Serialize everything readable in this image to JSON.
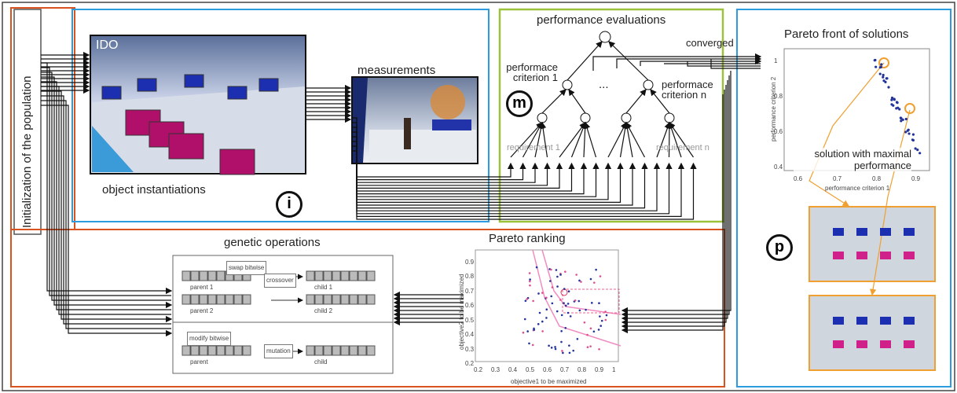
{
  "left_label": "Initialization of the population",
  "ido": {
    "label": "IDO",
    "caption": "object instantiations",
    "badge": "i"
  },
  "measurements": {
    "title": "measurements"
  },
  "evaluation": {
    "title": "performance evaluations",
    "criterion_1": "performace criterion 1",
    "criterion_n": "performace criterion n",
    "ellipsis": "...",
    "requirement_1": "requirement 1",
    "requirement_n": "requirement n",
    "badge": "m",
    "converged": "converged"
  },
  "pareto_front": {
    "title": "Pareto front of solutions",
    "annotation": "solution with maximal performance",
    "badge": "p",
    "x_label": "performance criterion 1",
    "y_label": "performance criterion 2",
    "xticks": [
      "0.6",
      "0.7",
      "0.8",
      "0.9"
    ],
    "yticks": [
      "0.4",
      "0.6",
      "0.8",
      "1"
    ]
  },
  "genetic": {
    "title": "genetic operations",
    "swap": "swap bitwise",
    "crossover": "crossover",
    "parent_1": "parent 1",
    "parent_2": "parent 2",
    "child_1": "child 1",
    "child_2": "child 2",
    "modify": "modify bitwise",
    "mutation": "mutation",
    "parent": "parent",
    "child": "child"
  },
  "pareto_ranking": {
    "title": "Pareto ranking",
    "x_label": "objective1 to be maximized",
    "y_label": "objective2 to be maximized",
    "xticks": [
      "0.2",
      "0.3",
      "0.4",
      "0.5",
      "0.6",
      "0.7",
      "0.8",
      "0.9",
      "1"
    ],
    "yticks": [
      "0.2",
      "0.3",
      "0.4",
      "0.5",
      "0.6",
      "0.7",
      "0.8",
      "0.9"
    ]
  }
}
